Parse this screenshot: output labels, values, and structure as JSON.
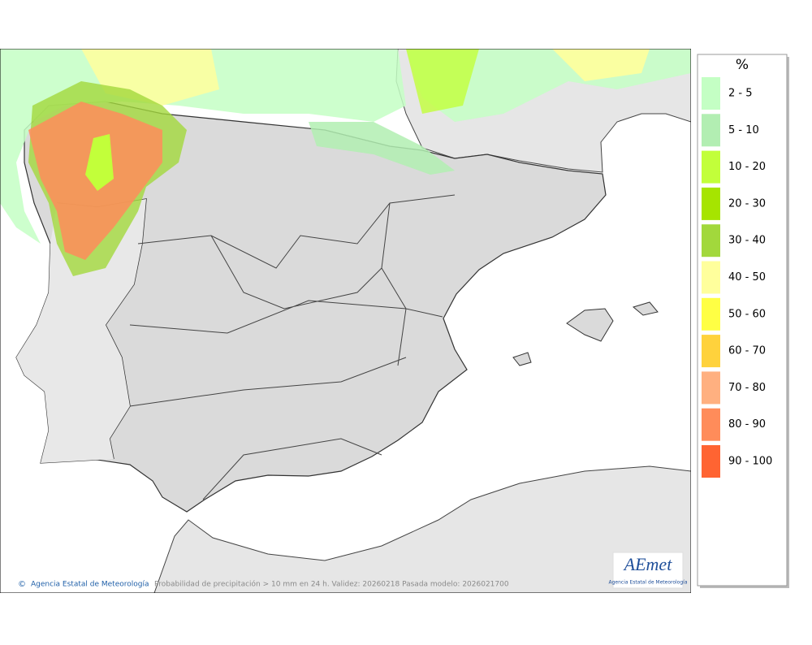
{
  "map": {
    "caption": "Probabilidad de precipitación > 10 mm en 24 h. Validez: 20260218 Pasada modelo: 2026021700",
    "credit": "Agencia Estatal de Meteorología",
    "logo": {
      "name": "AEmet",
      "subtitle": "Agencia Estatal de Meteorología"
    }
  },
  "legend": {
    "title": "%",
    "items": [
      {
        "label": "2 - 5",
        "color": "#c4ffc4"
      },
      {
        "label": "5 - 10",
        "color": "#b2eeb2"
      },
      {
        "label": "10 - 20",
        "color": "#c2ff3a"
      },
      {
        "label": "20 - 30",
        "color": "#a6e400"
      },
      {
        "label": "30 - 40",
        "color": "#a2d83c"
      },
      {
        "label": "40 - 50",
        "color": "#ffff9c"
      },
      {
        "label": "50 - 60",
        "color": "#ffff44"
      },
      {
        "label": "60 - 70",
        "color": "#ffd23c"
      },
      {
        "label": "70 - 80",
        "color": "#ffb080"
      },
      {
        "label": "80 - 90",
        "color": "#ff8c5a"
      },
      {
        "label": "90 - 100",
        "color": "#ff6432"
      }
    ]
  }
}
